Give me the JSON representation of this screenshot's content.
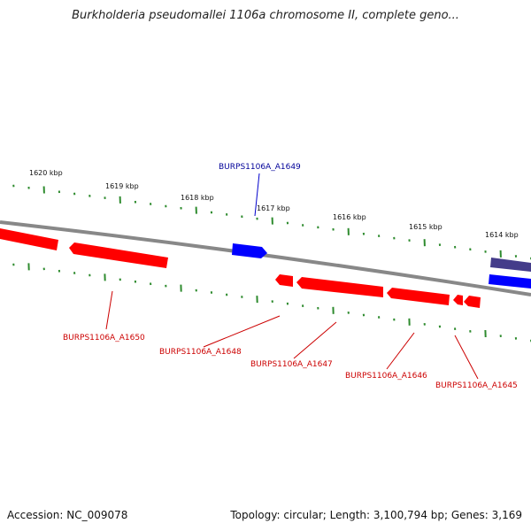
{
  "title": "Burkholderia pseudomallei 1106a chromosome II, complete geno...",
  "accession": "Accession: NC_009078",
  "summary": "Topology: circular; Length: 3,100,794 bp; Genes: 3,169",
  "colors": {
    "backbone": "#888888",
    "tick": "#2e8b2e",
    "reverse_gene": "#ff0000",
    "forward_gene": "#0000ff",
    "forward_gene_dark": "#443c8a",
    "label_reverse": "#cc0000",
    "label_forward": "#000099"
  },
  "scale_labels": [
    "1620 kbp",
    "1619 kbp",
    "1618 kbp",
    "1617 kbp",
    "1616 kbp",
    "1615 kbp",
    "1614 kbp"
  ],
  "genes": [
    {
      "label": "BURPS1106A_A1649",
      "strand": "forward"
    },
    {
      "label": "BURPS1106A_A1650",
      "strand": "reverse"
    },
    {
      "label": "BURPS1106A_A1648",
      "strand": "reverse"
    },
    {
      "label": "BURPS1106A_A1647",
      "strand": "reverse"
    },
    {
      "label": "BURPS1106A_A1646",
      "strand": "reverse"
    },
    {
      "label": "BURPS1106A_A1645",
      "strand": "reverse"
    }
  ]
}
